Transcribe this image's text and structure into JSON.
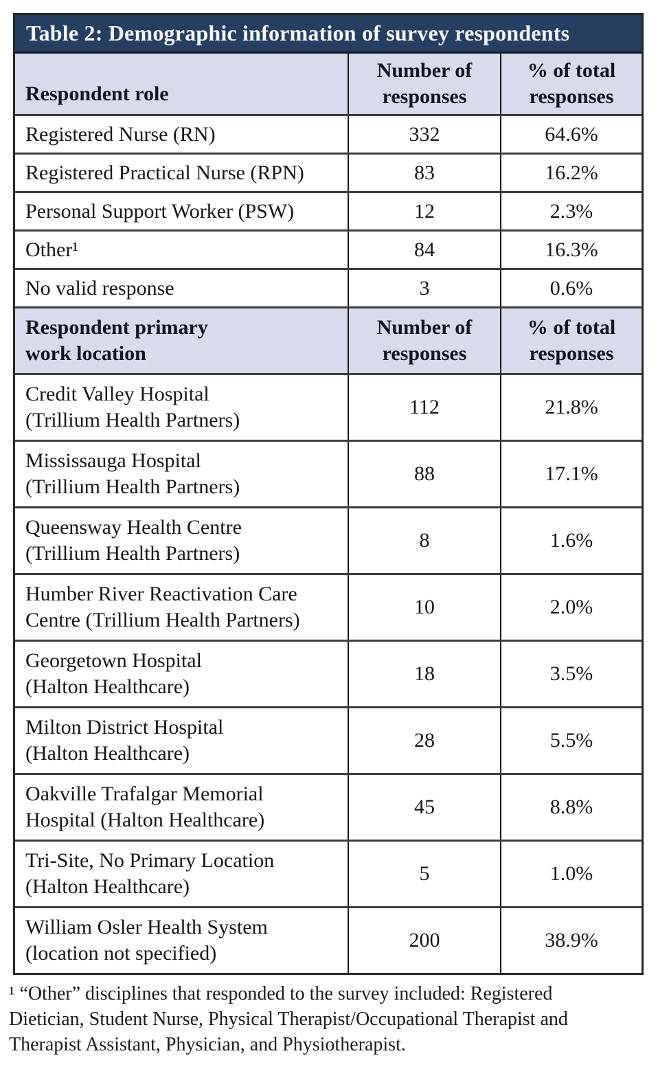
{
  "table": {
    "title": "Table 2: Demographic information of survey respondents",
    "sections": [
      {
        "header": "Respondent role",
        "col_responses": "Number of\nresponses",
        "col_percent": "% of total\nresponses",
        "rows": [
          {
            "label": "Registered Nurse (RN)",
            "responses": "332",
            "percent": "64.6%"
          },
          {
            "label": "Registered Practical Nurse (RPN)",
            "responses": "83",
            "percent": "16.2%"
          },
          {
            "label": "Personal Support Worker (PSW)",
            "responses": "12",
            "percent": "2.3%"
          },
          {
            "label": "Other¹",
            "responses": "84",
            "percent": "16.3%"
          },
          {
            "label": "No valid response",
            "responses": "3",
            "percent": "0.6%"
          }
        ]
      },
      {
        "header": "Respondent primary\nwork location",
        "col_responses": "Number of\nresponses",
        "col_percent": "% of total\nresponses",
        "rows": [
          {
            "label": "Credit Valley Hospital\n(Trillium Health Partners)",
            "responses": "112",
            "percent": "21.8%"
          },
          {
            "label": "Mississauga Hospital\n(Trillium Health Partners)",
            "responses": "88",
            "percent": "17.1%"
          },
          {
            "label": "Queensway Health Centre\n(Trillium Health Partners)",
            "responses": "8",
            "percent": "1.6%"
          },
          {
            "label": "Humber River Reactivation Care\nCentre (Trillium Health Partners)",
            "responses": "10",
            "percent": "2.0%"
          },
          {
            "label": "Georgetown Hospital\n(Halton Healthcare)",
            "responses": "18",
            "percent": "3.5%"
          },
          {
            "label": "Milton District Hospital\n(Halton Healthcare)",
            "responses": "28",
            "percent": "5.5%"
          },
          {
            "label": "Oakville Trafalgar Memorial\nHospital (Halton Healthcare)",
            "responses": "45",
            "percent": "8.8%"
          },
          {
            "label": "Tri-Site, No Primary Location\n(Halton Healthcare)",
            "responses": "5",
            "percent": "1.0%"
          },
          {
            "label": "William Osler Health System\n(location not specified)",
            "responses": "200",
            "percent": "38.9%"
          }
        ]
      }
    ],
    "footnote": "¹ “Other” disciplines that responded to the survey included: Registered\nDietician, Student Nurse, Physical Therapist/Occupational Therapist and\nTherapist Assistant, Physician, and Physiotherapist.",
    "colors": {
      "title_bar_bg": "#263e62",
      "title_text": "#f5f6fa",
      "header_row_bg": "#d7dbeb",
      "row_separator": "#3c3c3c",
      "outer_border": "#262626",
      "body_text": "#161616"
    }
  }
}
